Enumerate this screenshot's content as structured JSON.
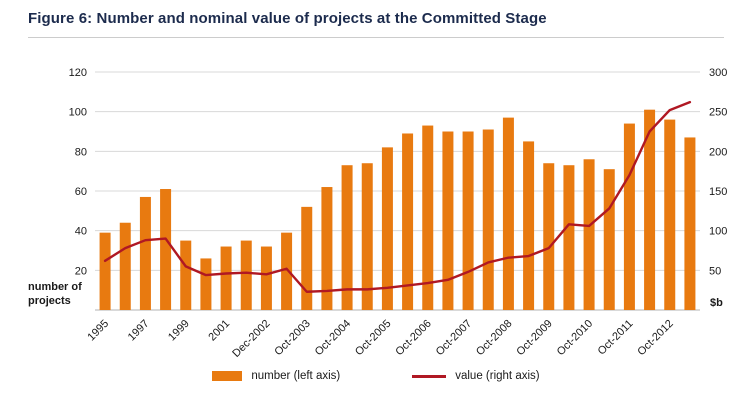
{
  "figure": {
    "title": "Figure 6: Number and nominal value of projects at the Committed Stage"
  },
  "colors": {
    "bar_orange": "#e87a10",
    "line_red": "#b01823",
    "title_navy": "#1c2b4d",
    "gridline": "#d8d8d8",
    "baseline": "#b3b3b3",
    "tick_text": "#1a1a1a"
  },
  "legend": {
    "bar_label": "number (left axis)",
    "line_label": "value (right axis)"
  },
  "chart_data": {
    "type": "combo_bar_line_dual_axis",
    "title": "Figure 6: Number and nominal value of projects at the Committed Stage",
    "left_axis": {
      "label": "number of projects",
      "range": [
        0,
        120
      ],
      "ticks": [
        20,
        40,
        60,
        80,
        100,
        120
      ]
    },
    "right_axis": {
      "label": "$b",
      "range": [
        0,
        300
      ],
      "ticks": [
        50,
        100,
        150,
        200,
        250,
        300
      ]
    },
    "grid": "horizontal only",
    "legend_position": "bottom center",
    "x_labels": [
      "1995",
      "1997",
      "1999",
      "2001",
      "Dec-2002",
      "Oct-2003",
      "Oct-2004",
      "Oct-2005",
      "Oct-2006",
      "Oct-2007",
      "Oct-2008",
      "Oct-2009",
      "Oct-2010",
      "Oct-2011",
      "Oct-2012"
    ],
    "x_label_indices": [
      0,
      2,
      4,
      6,
      8,
      10,
      12,
      14,
      16,
      18,
      20,
      22,
      24,
      26,
      28
    ],
    "bars": {
      "name": "number (left axis)",
      "axis": "left",
      "values": [
        39,
        44,
        57,
        61,
        35,
        26,
        32,
        35,
        32,
        39,
        52,
        62,
        73,
        74,
        82,
        89,
        93,
        90,
        90,
        91,
        97,
        85,
        74,
        73,
        76,
        71,
        94,
        101,
        96,
        87
      ]
    },
    "line": {
      "name": "value (right axis)",
      "axis": "right",
      "values": [
        62,
        78,
        88,
        90,
        55,
        44,
        46,
        47,
        45,
        52,
        23,
        24,
        26,
        26,
        28,
        31,
        34,
        38,
        48,
        60,
        66,
        68,
        78,
        108,
        106,
        128,
        170,
        225,
        252,
        262
      ]
    }
  }
}
